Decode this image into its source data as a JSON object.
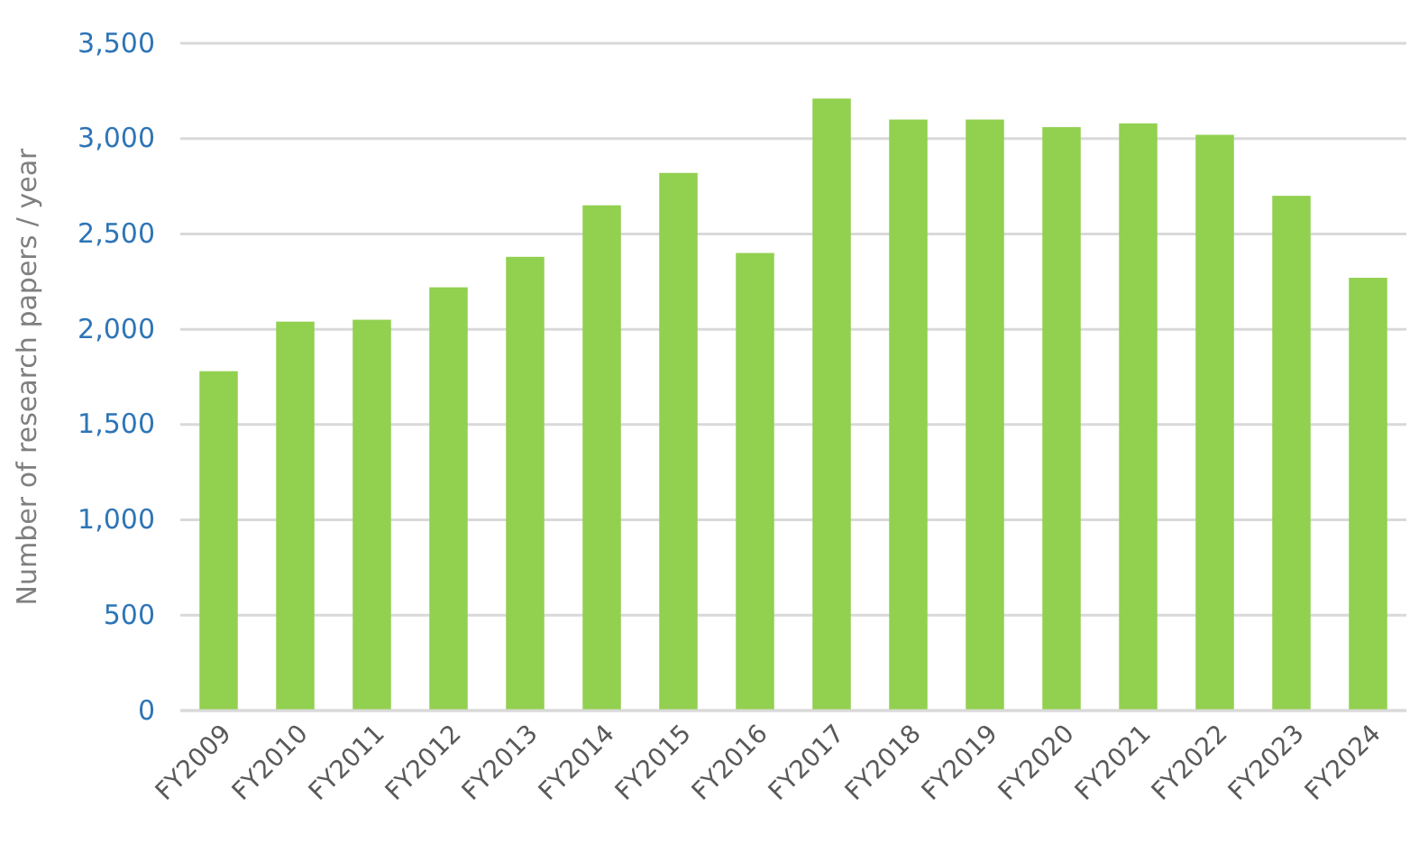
{
  "chart_data": {
    "type": "bar",
    "ylabel": "Number of research papers / year",
    "categories": [
      "FY2009",
      "FY2010",
      "FY2011",
      "FY2012",
      "FY2013",
      "FY2014",
      "FY2015",
      "FY2016",
      "FY2017",
      "FY2018",
      "FY2019",
      "FY2020",
      "FY2021",
      "FY2022",
      "FY2023",
      "FY2024"
    ],
    "values": [
      1780,
      2040,
      2050,
      2220,
      2380,
      2650,
      2820,
      2400,
      3210,
      3100,
      3100,
      3060,
      3080,
      3020,
      2700,
      2270
    ],
    "color": "#92d050",
    "ylim": [
      0,
      3500
    ],
    "yticks": [
      {
        "value": 0,
        "label": "0"
      },
      {
        "value": 500,
        "label": "500"
      },
      {
        "value": 1000,
        "label": "1,000"
      },
      {
        "value": 1500,
        "label": "1,500"
      },
      {
        "value": 2000,
        "label": "2,000"
      },
      {
        "value": 2500,
        "label": "2,500"
      },
      {
        "value": 3000,
        "label": "3,000"
      },
      {
        "value": 3500,
        "label": "3,500"
      }
    ],
    "grid": "y"
  }
}
